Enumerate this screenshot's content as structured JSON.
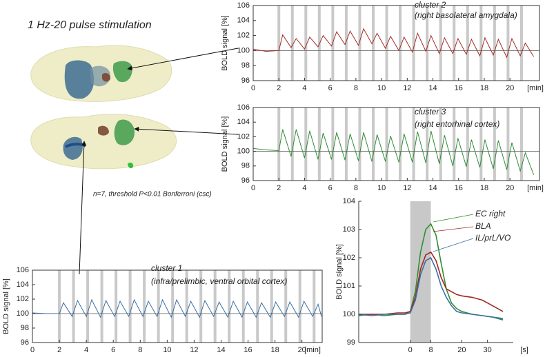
{
  "title": "1 Hz-20 pulse stimulation",
  "note": "n=7, threshold P<0.01 Bonferroni (csc)",
  "chart_data": [
    {
      "type": "line",
      "ylabel": "BOLD signal [%]",
      "xlabel": "[min]",
      "annotations": [
        "cluster 2",
        "(right basolateral amygdala)"
      ],
      "xlim": [
        0,
        22.3
      ],
      "ylim": [
        96,
        106
      ],
      "xticks": [
        0,
        2,
        4,
        6,
        8,
        10,
        12,
        14,
        16,
        18,
        20
      ],
      "yticks": [
        96,
        98,
        100,
        102,
        104,
        106
      ],
      "frame": true,
      "hline": 100,
      "stimuli": [
        2,
        3.05,
        4.1,
        5.15,
        6.2,
        7.25,
        8.3,
        9.35,
        10.4,
        11.45,
        12.5,
        13.55,
        14.6,
        15.65,
        16.7,
        17.75,
        18.8,
        19.85,
        20.9
      ],
      "x": [
        0,
        1,
        2,
        2.3,
        2.95,
        3.35,
        4.0,
        4.4,
        5.05,
        5.45,
        6.1,
        6.5,
        7.15,
        7.55,
        8.2,
        8.6,
        9.25,
        9.65,
        10.3,
        10.7,
        11.35,
        11.75,
        12.4,
        12.8,
        13.45,
        13.85,
        14.5,
        14.9,
        15.55,
        15.95,
        16.6,
        17.0,
        17.65,
        18.05,
        18.7,
        19.1,
        19.75,
        20.15,
        20.8,
        21.2,
        21.85
      ],
      "series": [
        {
          "color": "#a32a26",
          "values": [
            100.2,
            99.9,
            100,
            102.1,
            100.4,
            101.6,
            100.2,
            101.8,
            100.5,
            102.0,
            100.6,
            102.5,
            100.8,
            102.6,
            100.7,
            102.9,
            100.9,
            102.3,
            100.3,
            101.9,
            100.0,
            101.8,
            99.8,
            102.3,
            99.9,
            102.0,
            99.6,
            101.7,
            99.6,
            101.6,
            99.5,
            101.5,
            99.3,
            101.7,
            99.4,
            101.5,
            99.1,
            101.6,
            99.3,
            101.0,
            99.2
          ]
        }
      ]
    },
    {
      "type": "line",
      "ylabel": "BOLD signal [%]",
      "xlabel": "[min]",
      "annotations": [
        "cluster 3",
        "(right entorhinal cortex)"
      ],
      "xlim": [
        0,
        22.3
      ],
      "ylim": [
        96,
        106
      ],
      "xticks": [
        0,
        2,
        4,
        6,
        8,
        10,
        12,
        14,
        16,
        18,
        20
      ],
      "yticks": [
        96,
        98,
        100,
        102,
        104,
        106
      ],
      "frame": true,
      "hline": 100,
      "stimuli": [
        2,
        3.05,
        4.1,
        5.15,
        6.2,
        7.25,
        8.3,
        9.35,
        10.4,
        11.45,
        12.5,
        13.55,
        14.6,
        15.65,
        16.7,
        17.75,
        18.8,
        19.85,
        20.9
      ],
      "x": [
        0,
        1,
        2,
        2.3,
        2.95,
        3.35,
        4.0,
        4.4,
        5.05,
        5.45,
        6.1,
        6.5,
        7.15,
        7.55,
        8.2,
        8.6,
        9.25,
        9.65,
        10.3,
        10.7,
        11.35,
        11.75,
        12.4,
        12.8,
        13.45,
        13.85,
        14.5,
        14.9,
        15.55,
        15.95,
        16.6,
        17.0,
        17.65,
        18.05,
        18.7,
        19.1,
        19.75,
        20.15,
        20.8,
        21.2,
        21.85
      ],
      "series": [
        {
          "color": "#2f8a34",
          "values": [
            100.4,
            100.2,
            100.1,
            103.0,
            99.3,
            103.0,
            99.1,
            102.8,
            98.9,
            102.5,
            98.9,
            102.6,
            98.8,
            102.4,
            98.7,
            102.6,
            98.6,
            102.3,
            98.6,
            102.1,
            98.5,
            102.4,
            98.5,
            102.7,
            98.4,
            102.8,
            98.3,
            102.2,
            98.0,
            101.8,
            97.9,
            101.6,
            97.8,
            101.6,
            97.6,
            101.5,
            97.5,
            101.2,
            97.3,
            99.8,
            96.8
          ]
        }
      ]
    },
    {
      "type": "line",
      "ylabel": "BOLD signal [%]",
      "xlabel": "[min]",
      "annotations": [
        "cluster 1",
        "(infra/prelimbic, ventral orbital cortex)"
      ],
      "xlim": [
        0,
        21.5
      ],
      "ylim": [
        96,
        106
      ],
      "xticks": [
        0,
        2,
        4,
        6,
        8,
        10,
        12,
        14,
        16,
        18,
        20
      ],
      "yticks": [
        96,
        98,
        100,
        102,
        104,
        106
      ],
      "frame": true,
      "hline": 100,
      "stimuli": [
        2,
        3.05,
        4.1,
        5.15,
        6.2,
        7.25,
        8.3,
        9.35,
        10.4,
        11.45,
        12.5,
        13.55,
        14.6,
        15.65,
        16.7,
        17.75,
        18.8,
        19.85,
        20.9
      ],
      "x": [
        0,
        1,
        2,
        2.3,
        2.95,
        3.35,
        4.0,
        4.4,
        5.05,
        5.45,
        6.1,
        6.5,
        7.15,
        7.55,
        8.2,
        8.6,
        9.25,
        9.65,
        10.3,
        10.7,
        11.35,
        11.75,
        12.4,
        12.8,
        13.45,
        13.85,
        14.5,
        14.9,
        15.55,
        15.95,
        16.6,
        17.0,
        17.65,
        18.05,
        18.7,
        19.1,
        19.75,
        20.15,
        20.8,
        21.2,
        21.45
      ],
      "series": [
        {
          "color": "#3a6ea5",
          "values": [
            100.1,
            100.0,
            100.0,
            101.5,
            99.6,
            101.8,
            99.6,
            101.9,
            99.5,
            101.8,
            99.6,
            101.7,
            99.6,
            101.9,
            99.6,
            101.7,
            99.6,
            101.9,
            99.5,
            101.9,
            99.6,
            101.7,
            99.5,
            101.8,
            99.6,
            101.6,
            99.5,
            101.7,
            99.5,
            101.6,
            99.5,
            101.5,
            99.5,
            101.6,
            99.6,
            101.6,
            99.5,
            101.7,
            99.6,
            101.3,
            99.6
          ]
        }
      ]
    },
    {
      "type": "line",
      "ylabel": "BOLD signal [%]",
      "xlabel": "[s]",
      "xlim": [
        -20,
        40
      ],
      "ylim": [
        99,
        104
      ],
      "xticks": [
        0,
        8,
        20,
        30
      ],
      "yticks": [
        99,
        100,
        101,
        102,
        103,
        104
      ],
      "frame": false,
      "shade": [
        0,
        8
      ],
      "x": [
        -20,
        -15,
        -10,
        -5,
        -2,
        0,
        2,
        4,
        6,
        8,
        10,
        12,
        14,
        16,
        18,
        20,
        24,
        28,
        32,
        36
      ],
      "series": [
        {
          "name": "EC right",
          "color": "#2f8f2f",
          "values": [
            99.95,
            100.0,
            99.95,
            100.0,
            100.0,
            100.1,
            100.8,
            102.2,
            103.0,
            103.2,
            102.8,
            101.8,
            100.9,
            100.4,
            100.2,
            100.1,
            100.0,
            99.95,
            99.9,
            99.85
          ]
        },
        {
          "name": "BLA",
          "color": "#a3261f",
          "values": [
            100.0,
            100.0,
            100.0,
            100.05,
            100.05,
            100.1,
            100.6,
            101.6,
            102.1,
            102.2,
            101.9,
            101.3,
            100.9,
            100.8,
            100.7,
            100.65,
            100.6,
            100.5,
            100.3,
            100.1
          ]
        },
        {
          "name": "IL/prL/VO",
          "color": "#3b6fa8",
          "values": [
            100.0,
            99.95,
            100.0,
            100.0,
            100.0,
            100.05,
            100.5,
            101.4,
            101.9,
            102.0,
            101.6,
            101.0,
            100.6,
            100.3,
            100.1,
            100.05,
            100.0,
            99.95,
            99.9,
            99.8
          ]
        }
      ]
    }
  ]
}
